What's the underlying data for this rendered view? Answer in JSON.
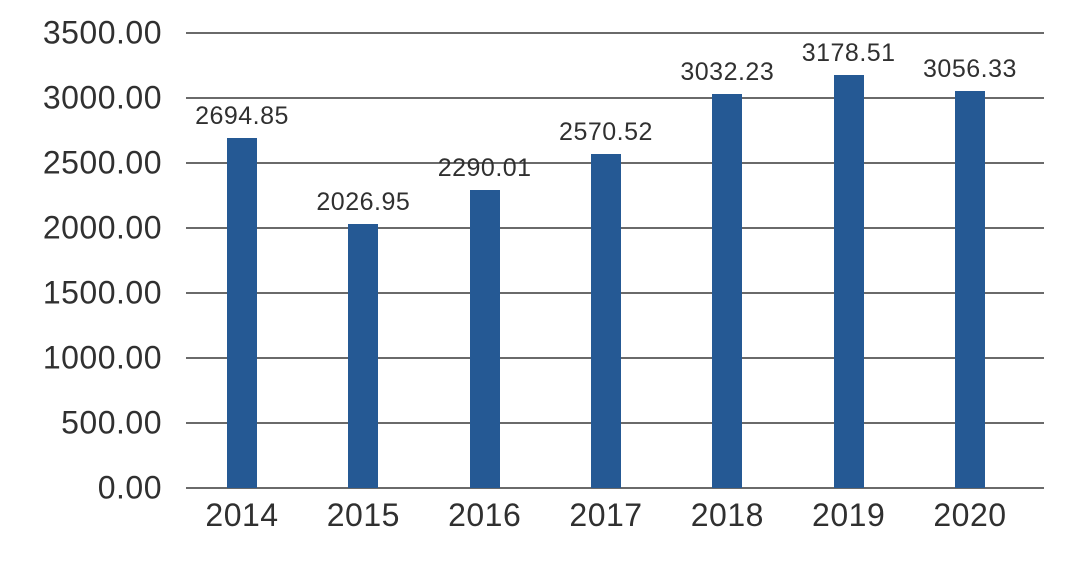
{
  "chart_data": {
    "type": "bar",
    "title": "",
    "xlabel": "",
    "ylabel": "",
    "categories": [
      "2014",
      "2015",
      "2016",
      "2017",
      "2018",
      "2019",
      "2020"
    ],
    "values": [
      2694.85,
      2026.95,
      2290.01,
      2570.52,
      3032.23,
      3178.51,
      3056.33
    ],
    "data_labels": [
      "2694.85",
      "2026.95",
      "2290.01",
      "2570.52",
      "3032.23",
      "3178.51",
      "3056.33"
    ],
    "ylim": [
      0,
      3500
    ],
    "y_tick_step": 500,
    "y_tick_labels": [
      "0.00",
      "500.00",
      "1000.00",
      "1500.00",
      "2000.00",
      "2500.00",
      "3000.00",
      "3500.00"
    ],
    "grid": true,
    "legend": false,
    "colors": {
      "bar": "#255994",
      "gridline": "#6a6a6a",
      "text": "#303030",
      "background": "#ffffff"
    }
  }
}
